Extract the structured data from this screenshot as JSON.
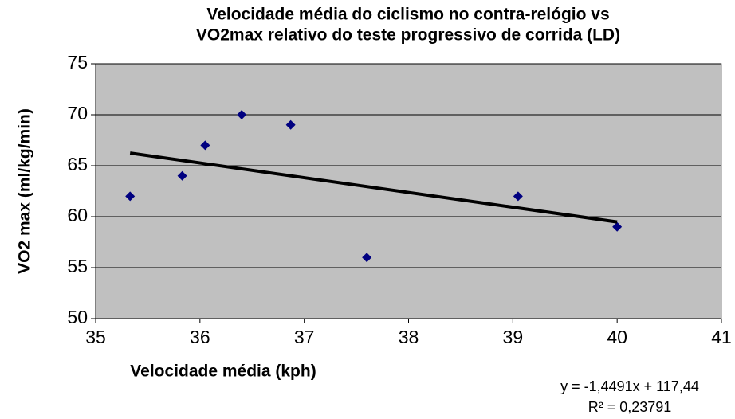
{
  "chart_data": {
    "type": "scatter",
    "title": [
      "Velocidade média do ciclismo no contra-relógio vs",
      "VO2max relativo do teste progressivo de corrida (LD)"
    ],
    "x_label": "Velocidade média (kph)",
    "y_label": "VO2 max (ml/kg/min)",
    "series": [
      {
        "name": "LD",
        "color": "#000080",
        "x": [
          35.33,
          35.83,
          36.05,
          36.4,
          36.87,
          37.6,
          39.05,
          40.0
        ],
        "values": [
          62,
          64,
          67,
          70,
          69,
          56,
          62,
          59
        ]
      }
    ],
    "trendline": {
      "color": "#000000",
      "x": [
        35.33,
        40.0
      ],
      "values": [
        66.24,
        59.48
      ],
      "equation": "y = -1,4491x + 117,44",
      "r2": "R² = 0,23791"
    },
    "xlim": [
      35,
      41
    ],
    "xticks": [
      35,
      36,
      37,
      38,
      39,
      40,
      41
    ],
    "ylim": [
      50,
      75
    ],
    "yticks": [
      50,
      55,
      60,
      65,
      70,
      75
    ],
    "grid": true,
    "plot_background": "#c0c0c0"
  }
}
